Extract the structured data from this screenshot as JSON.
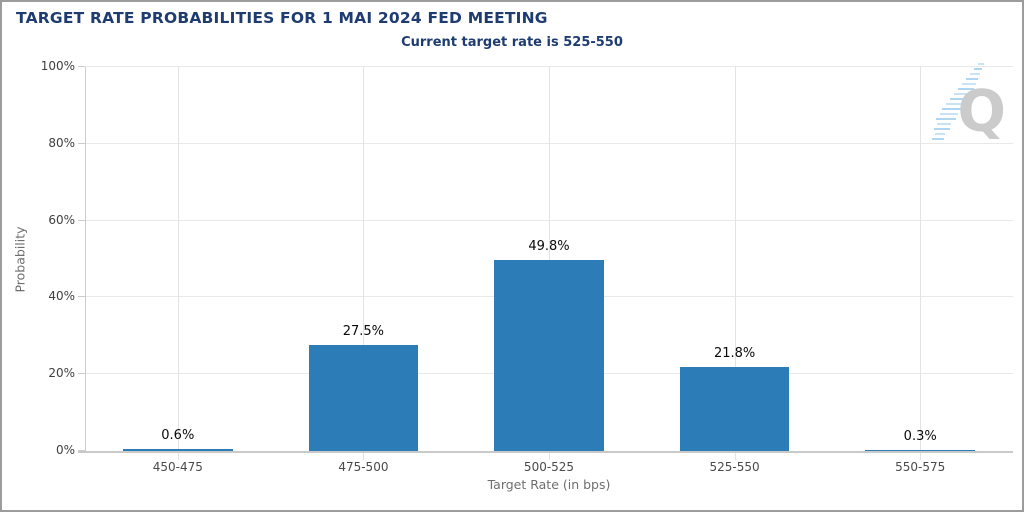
{
  "header": {
    "title": "TARGET RATE PROBABILITIES FOR 1 MAI 2024 FED MEETING",
    "subtitle": "Current target rate is 525-550"
  },
  "chart_data": {
    "type": "bar",
    "title": "TARGET RATE PROBABILITIES FOR 1 MAI 2024 FED MEETING",
    "subtitle": "Current target rate is 525-550",
    "categories": [
      "450-475",
      "475-500",
      "500-525",
      "525-550",
      "550-575"
    ],
    "values": [
      0.6,
      27.5,
      49.8,
      21.8,
      0.3
    ],
    "value_labels": [
      "0.6%",
      "27.5%",
      "49.8%",
      "21.8%",
      "0.3%"
    ],
    "xlabel": "Target Rate (in bps)",
    "ylabel": "Probability",
    "ylim": [
      0,
      100
    ],
    "ytick_values": [
      0,
      20,
      40,
      60,
      80,
      100
    ],
    "ytick_labels": [
      "0%",
      "20%",
      "40%",
      "60%",
      "80%",
      "100%"
    ],
    "grid": true,
    "legend": "none",
    "bar_color": "#2b7cb7",
    "title_color": "#1e3c70",
    "bar_width_fraction": 0.59
  },
  "watermark": {
    "letter": "Q",
    "dash_color": "#a5d2ef",
    "letter_color": "#c9c9c9"
  }
}
